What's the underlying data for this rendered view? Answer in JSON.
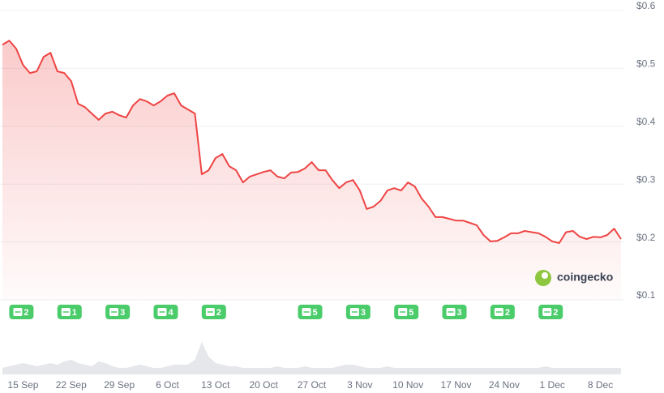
{
  "chart_data": {
    "type": "line",
    "x": [
      "12 Sep",
      "13 Sep",
      "14 Sep",
      "15 Sep",
      "16 Sep",
      "17 Sep",
      "18 Sep",
      "19 Sep",
      "20 Sep",
      "21 Sep",
      "22 Sep",
      "23 Sep",
      "24 Sep",
      "25 Sep",
      "26 Sep",
      "27 Sep",
      "28 Sep",
      "29 Sep",
      "30 Sep",
      "1 Oct",
      "2 Oct",
      "3 Oct",
      "4 Oct",
      "5 Oct",
      "6 Oct",
      "7 Oct",
      "8 Oct",
      "9 Oct",
      "10 Oct",
      "11 Oct",
      "12 Oct",
      "13 Oct",
      "14 Oct",
      "15 Oct",
      "16 Oct",
      "17 Oct",
      "18 Oct",
      "19 Oct",
      "20 Oct",
      "21 Oct",
      "22 Oct",
      "23 Oct",
      "24 Oct",
      "25 Oct",
      "26 Oct",
      "27 Oct",
      "28 Oct",
      "29 Oct",
      "30 Oct",
      "31 Oct",
      "1 Nov",
      "2 Nov",
      "3 Nov",
      "4 Nov",
      "5 Nov",
      "6 Nov",
      "7 Nov",
      "8 Nov",
      "9 Nov",
      "10 Nov",
      "11 Nov",
      "12 Nov",
      "13 Nov",
      "14 Nov",
      "15 Nov",
      "16 Nov",
      "17 Nov",
      "18 Nov",
      "19 Nov",
      "20 Nov",
      "21 Nov",
      "22 Nov",
      "23 Nov",
      "24 Nov",
      "25 Nov",
      "26 Nov",
      "27 Nov",
      "28 Nov",
      "29 Nov",
      "30 Nov",
      "1 Dec",
      "2 Dec",
      "3 Dec",
      "4 Dec",
      "5 Dec",
      "6 Dec",
      "7 Dec",
      "8 Dec",
      "9 Dec",
      "10 Dec",
      "11 Dec"
    ],
    "series": [
      {
        "name": "Price",
        "color": "#ef4444",
        "values": [
          0.534,
          0.541,
          0.527,
          0.499,
          0.485,
          0.488,
          0.513,
          0.52,
          0.488,
          0.485,
          0.471,
          0.432,
          0.426,
          0.415,
          0.404,
          0.415,
          0.418,
          0.412,
          0.408,
          0.429,
          0.44,
          0.436,
          0.429,
          0.436,
          0.446,
          0.45,
          0.429,
          0.422,
          0.415,
          0.31,
          0.317,
          0.338,
          0.345,
          0.324,
          0.317,
          0.296,
          0.306,
          0.31,
          0.314,
          0.317,
          0.306,
          0.303,
          0.313,
          0.314,
          0.32,
          0.331,
          0.317,
          0.317,
          0.3,
          0.286,
          0.296,
          0.3,
          0.282,
          0.25,
          0.254,
          0.264,
          0.282,
          0.286,
          0.282,
          0.296,
          0.289,
          0.268,
          0.254,
          0.236,
          0.236,
          0.233,
          0.23,
          0.23,
          0.226,
          0.222,
          0.205,
          0.194,
          0.195,
          0.201,
          0.208,
          0.208,
          0.212,
          0.21,
          0.208,
          0.202,
          0.194,
          0.191,
          0.21,
          0.212,
          0.202,
          0.198,
          0.202,
          0.201,
          0.205,
          0.216,
          0.198
        ]
      },
      {
        "name": "Volume",
        "color": "#e5e7eb",
        "values": [
          0.2,
          0.25,
          0.3,
          0.35,
          0.3,
          0.25,
          0.3,
          0.35,
          0.3,
          0.4,
          0.45,
          0.35,
          0.3,
          0.25,
          0.4,
          0.35,
          0.25,
          0.2,
          0.2,
          0.25,
          0.3,
          0.25,
          0.2,
          0.2,
          0.25,
          0.3,
          0.3,
          0.3,
          0.45,
          1.0,
          0.55,
          0.35,
          0.3,
          0.25,
          0.25,
          0.2,
          0.2,
          0.2,
          0.2,
          0.2,
          0.25,
          0.2,
          0.2,
          0.2,
          0.25,
          0.2,
          0.2,
          0.2,
          0.2,
          0.25,
          0.3,
          0.3,
          0.25,
          0.2,
          0.2,
          0.2,
          0.25,
          0.2,
          0.2,
          0.2,
          0.2,
          0.2,
          0.2,
          0.2,
          0.2,
          0.2,
          0.2,
          0.2,
          0.2,
          0.2,
          0.2,
          0.2,
          0.2,
          0.2,
          0.2,
          0.2,
          0.2,
          0.2,
          0.2,
          0.25,
          0.2,
          0.2,
          0.2,
          0.2,
          0.2,
          0.2,
          0.2,
          0.2,
          0.2,
          0.2,
          0.2
        ]
      }
    ],
    "ylim": [
      0.1,
      0.6
    ],
    "yticks": [
      {
        "value": 0.6,
        "label": "$0.6"
      },
      {
        "value": 0.5,
        "label": "$0.5"
      },
      {
        "value": 0.4,
        "label": "$0.4"
      },
      {
        "value": 0.3,
        "label": "$0.3"
      },
      {
        "value": 0.2,
        "label": "$0.2"
      },
      {
        "value": 0.1,
        "label": "$0.1"
      }
    ],
    "xticks": [
      "15 Sep",
      "22 Sep",
      "29 Sep",
      "6 Oct",
      "13 Oct",
      "20 Oct",
      "27 Oct",
      "3 Nov",
      "10 Nov",
      "17 Nov",
      "24 Nov",
      "1 Dec",
      "8 Dec"
    ],
    "news_counts": [
      2,
      1,
      3,
      4,
      2,
      null,
      5,
      3,
      5,
      3,
      2,
      2,
      null
    ],
    "watermark": "coingecko",
    "grid": true
  }
}
